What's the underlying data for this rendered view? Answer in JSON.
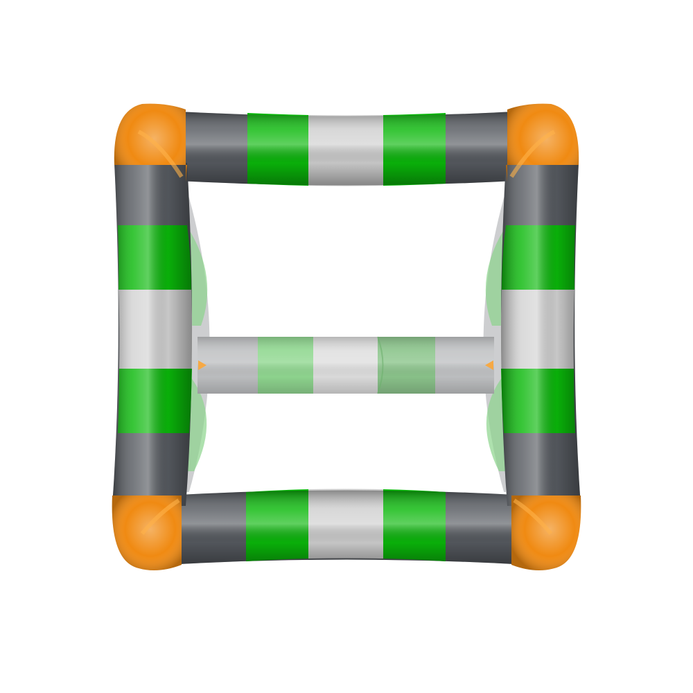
{
  "colors": {
    "background": "#ffffff",
    "orange": "#f08a12",
    "dark_gray": "#565a60",
    "green": "#0ab80a",
    "light_gray": "#c9c9c9",
    "back_tube_gray": "#b4b6b8",
    "back_tube_green": "#7fcf7f",
    "back_tube_dim_green": "#78b878"
  },
  "model": {
    "description_icon": "molecular-cage-icon",
    "edge_pattern": [
      "dark_gray",
      "green",
      "light_gray",
      "green",
      "dark_gray"
    ]
  }
}
